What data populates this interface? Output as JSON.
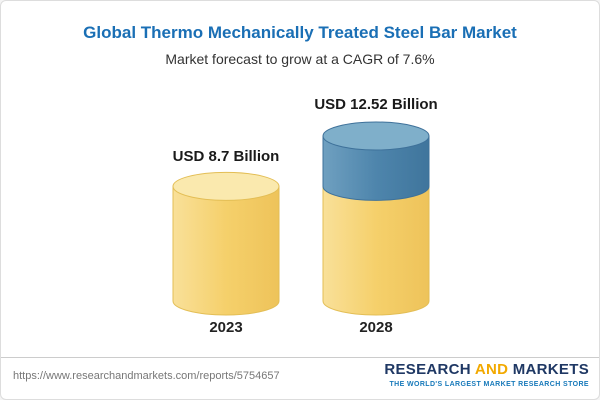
{
  "header": {
    "title": "Global Thermo Mechanically Treated Steel Bar Market",
    "subtitle": "Market forecast to grow at a CAGR of 7.6%"
  },
  "chart_data": {
    "type": "bar",
    "variant": "3d-cylinder",
    "categories": [
      "2023",
      "2028"
    ],
    "values": [
      8.7,
      12.52
    ],
    "value_labels": [
      "USD 8.7 Billion",
      "USD 12.52 Billion"
    ],
    "unit": "USD Billion",
    "cagr": "7.6%",
    "title": "Global Thermo Mechanically Treated Steel Bar Market",
    "subtitle": "Market forecast to grow at a CAGR of 7.6%",
    "ylim": [
      0,
      13
    ],
    "grid": false,
    "legend": false,
    "colors": {
      "base_bar": "#f5d06b",
      "base_bar_top": "#fae9ae",
      "base_bar_stroke": "#e3be55",
      "growth_segment": "#4e85ac",
      "growth_segment_top": "#7fafca",
      "growth_segment_stroke": "#3e719a"
    },
    "notes": "2028 bar is stacked: yellow base equals 2023 value (8.7), blue top segment is growth to 12.52"
  },
  "footer": {
    "url": "https://www.researchandmarkets.com/reports/5754657",
    "logo": {
      "research": "RESEARCH",
      "and": "AND",
      "markets": "MARKETS",
      "tagline": "THE WORLD'S LARGEST MARKET RESEARCH STORE"
    }
  }
}
